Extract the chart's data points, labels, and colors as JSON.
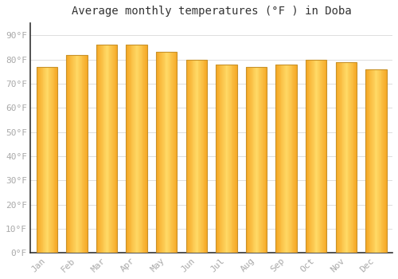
{
  "title": "Average monthly temperatures (°F ) in Doba",
  "months": [
    "Jan",
    "Feb",
    "Mar",
    "Apr",
    "May",
    "Jun",
    "Jul",
    "Aug",
    "Sep",
    "Oct",
    "Nov",
    "Dec"
  ],
  "values": [
    77,
    82,
    86,
    86,
    83,
    80,
    78,
    77,
    78,
    80,
    79,
    76
  ],
  "bar_color_left": "#F5A623",
  "bar_color_center": "#FFD966",
  "bar_color_right": "#F5A623",
  "bar_edge_color": "#C8922A",
  "background_color": "#FFFFFF",
  "plot_bg_color": "#FFFFFF",
  "grid_color": "#DDDDDD",
  "ylim": [
    0,
    95
  ],
  "yticks": [
    0,
    10,
    20,
    30,
    40,
    50,
    60,
    70,
    80,
    90
  ],
  "ytick_labels": [
    "0°F",
    "10°F",
    "20°F",
    "30°F",
    "40°F",
    "50°F",
    "60°F",
    "70°F",
    "80°F",
    "90°F"
  ],
  "title_fontsize": 10,
  "tick_fontsize": 8,
  "tick_color": "#AAAAAA",
  "spine_color": "#333333"
}
